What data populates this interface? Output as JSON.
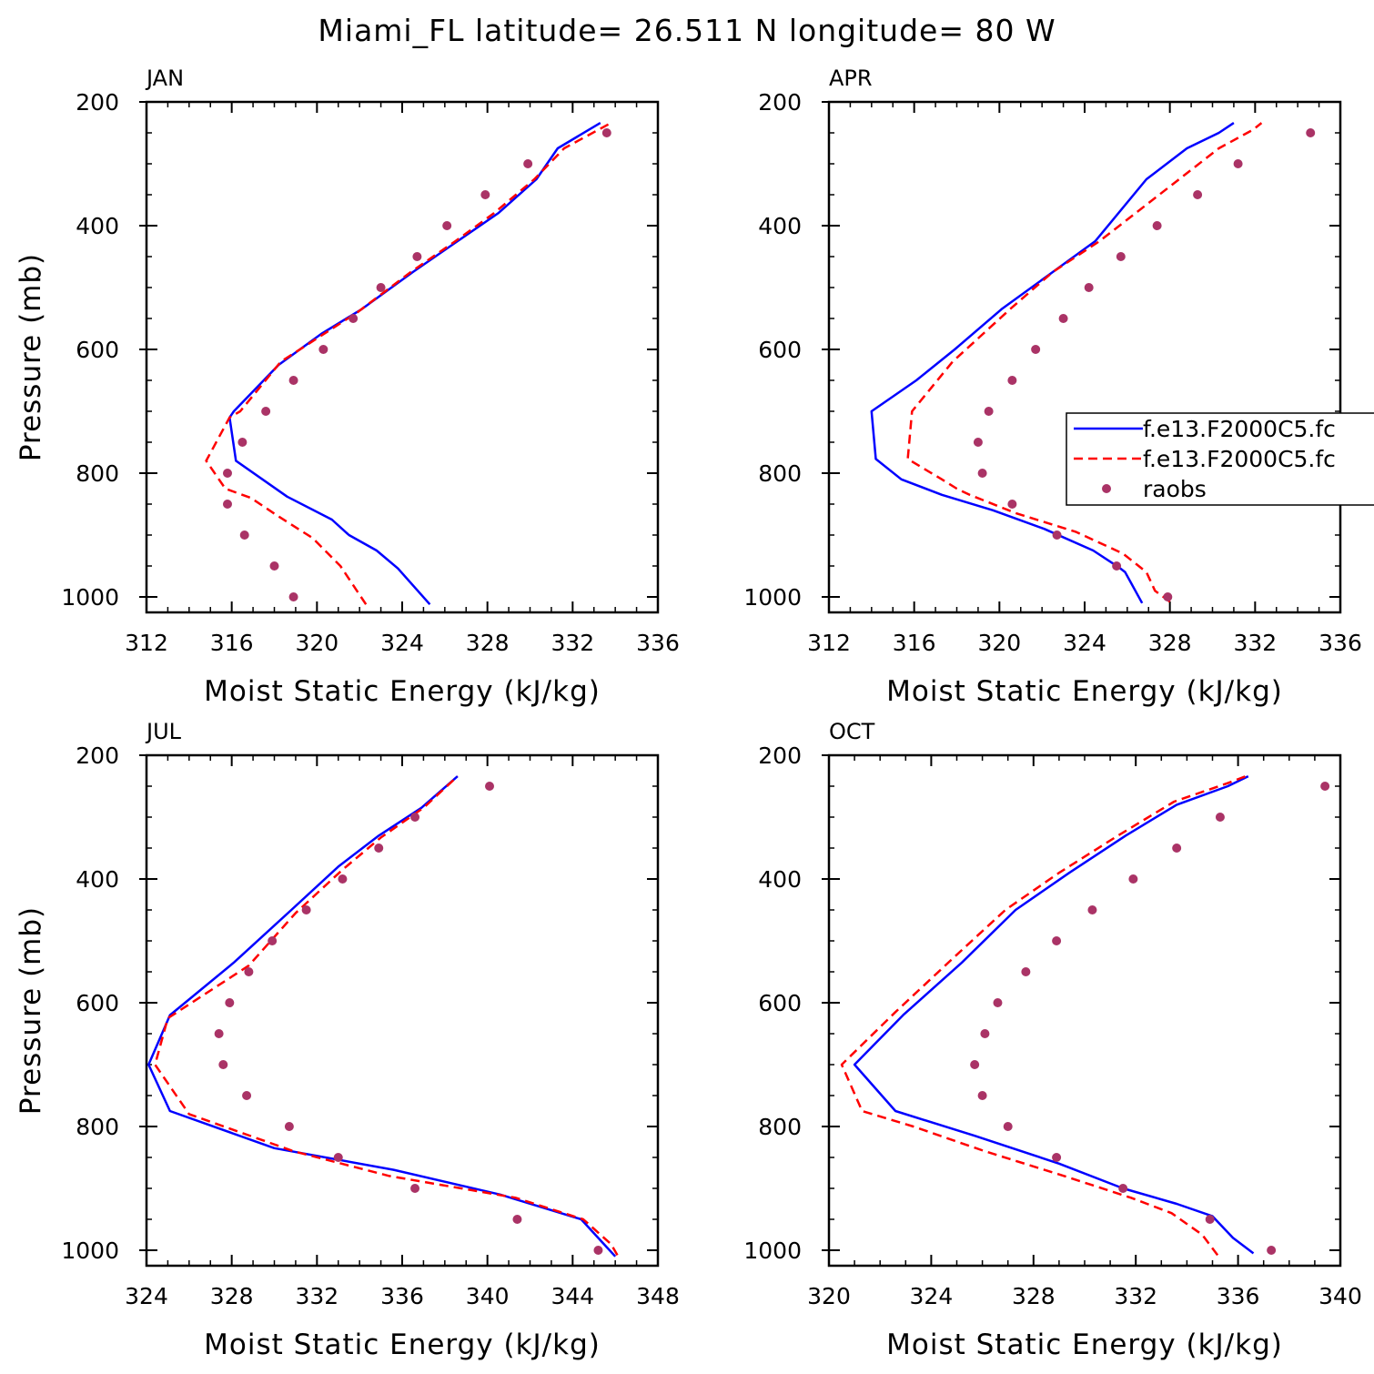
{
  "title": "Miami_FL  latitude= 26.511 N longitude= 80 W",
  "colors": {
    "series1": "#0000ff",
    "series2": "#ff0000",
    "raobs": "#aa3366"
  },
  "legend": {
    "placement": "right of APR panel (clipped)",
    "entries": [
      "f.e13.F2000C5.fc",
      "f.e13.F2000C5.fc",
      "raobs"
    ]
  },
  "chart_data": [
    {
      "type": "line",
      "title": "JAN",
      "xlabel": "Moist Static Energy (kJ/kg)",
      "ylabel": "Pressure (mb)",
      "xlim": [
        312,
        336
      ],
      "ylim": [
        1000,
        200
      ],
      "xticks": [
        312,
        316,
        320,
        324,
        328,
        332,
        336
      ],
      "yticks": [
        200,
        400,
        600,
        800,
        1000
      ],
      "series": [
        {
          "style": "solid-blue",
          "x": [
            325.3,
            323.8,
            322.8,
            321.5,
            320.7,
            318.6,
            316.2,
            315.9,
            316.1,
            318.2,
            320.2,
            322.1,
            324.5,
            326.6,
            328.5,
            330.3,
            331.3,
            333.3
          ],
          "y": [
            1012,
            954,
            925,
            900,
            875,
            838,
            780,
            710,
            700,
            625,
            575,
            535,
            475,
            425,
            380,
            325,
            275,
            234
          ]
        },
        {
          "style": "dashed-red",
          "x": [
            322.3,
            321.1,
            319.8,
            318.2,
            316.9,
            315.7,
            314.8,
            315.9,
            316.4,
            318.3,
            320.1,
            321.9,
            324.4,
            326.5,
            328.3,
            330.2,
            331.6,
            333.8
          ],
          "y": [
            1012,
            950,
            905,
            870,
            840,
            825,
            780,
            710,
            700,
            620,
            580,
            540,
            475,
            425,
            380,
            325,
            275,
            234
          ]
        },
        {
          "style": "dots",
          "name": "raobs",
          "x": [
            318.9,
            318.0,
            316.6,
            315.8,
            315.8,
            316.5,
            317.6,
            318.9,
            320.3,
            321.7,
            323.0,
            324.7,
            326.1,
            327.9,
            329.9,
            333.6
          ],
          "y": [
            1000,
            950,
            900,
            850,
            800,
            750,
            700,
            650,
            600,
            550,
            500,
            450,
            400,
            350,
            300,
            250
          ]
        }
      ]
    },
    {
      "type": "line",
      "title": "APR",
      "xlabel": "Moist Static Energy (kJ/kg)",
      "ylabel": "",
      "xlim": [
        312,
        336
      ],
      "ylim": [
        1000,
        200
      ],
      "xticks": [
        312,
        316,
        320,
        324,
        328,
        332,
        336
      ],
      "yticks": [
        200,
        400,
        600,
        800,
        1000
      ],
      "series": [
        {
          "style": "solid-blue",
          "x": [
            326.7,
            325.9,
            325.6,
            324.4,
            322.1,
            319.7,
            317.3,
            315.4,
            314.2,
            314.0,
            316.1,
            317.9,
            320.1,
            322.5,
            324.5,
            326.9,
            328.8,
            330.3,
            331.0
          ],
          "y": [
            1010,
            960,
            952,
            925,
            890,
            860,
            835,
            810,
            777,
            700,
            650,
            600,
            535,
            475,
            425,
            325,
            275,
            250,
            234
          ]
        },
        {
          "style": "dashed-red",
          "x": [
            328.0,
            327.3,
            326.9,
            325.8,
            323.6,
            320.8,
            318.6,
            318.0,
            317.3,
            315.7,
            315.9,
            317.8,
            320.5,
            322.5,
            324.7,
            327.5,
            330.3,
            331.9,
            332.3
          ],
          "y": [
            1008,
            990,
            960,
            930,
            895,
            865,
            835,
            825,
            810,
            777,
            700,
            620,
            535,
            475,
            425,
            350,
            275,
            245,
            234
          ]
        },
        {
          "style": "dots",
          "name": "raobs",
          "x": [
            327.9,
            325.5,
            322.7,
            320.6,
            319.2,
            319.0,
            319.5,
            320.6,
            321.7,
            323.0,
            324.2,
            325.7,
            327.4,
            329.3,
            331.2,
            334.6
          ],
          "y": [
            1000,
            950,
            900,
            850,
            800,
            750,
            700,
            650,
            600,
            550,
            500,
            450,
            400,
            350,
            300,
            250
          ]
        }
      ]
    },
    {
      "type": "line",
      "title": "JUL",
      "xlabel": "Moist Static Energy (kJ/kg)",
      "ylabel": "Pressure (mb)",
      "xlim": [
        324,
        348
      ],
      "ylim": [
        1000,
        200
      ],
      "xticks": [
        324,
        328,
        332,
        336,
        340,
        344,
        348
      ],
      "yticks": [
        200,
        400,
        600,
        800,
        1000
      ],
      "series": [
        {
          "style": "solid-blue",
          "x": [
            346.0,
            345.6,
            344.4,
            340.6,
            335.6,
            330.0,
            325.1,
            324.1,
            325.1,
            328.1,
            330.8,
            333.0,
            334.9,
            336.9,
            338.6
          ],
          "y": [
            1010,
            995,
            950,
            910,
            870,
            835,
            775,
            700,
            620,
            535,
            450,
            380,
            330,
            285,
            234
          ]
        },
        {
          "style": "dashed-red",
          "x": [
            346.1,
            345.8,
            344.5,
            341.3,
            335.4,
            330.9,
            326.0,
            324.4,
            325.0,
            328.8,
            331.0,
            333.2,
            335.0,
            337.0,
            338.6
          ],
          "y": [
            1008,
            990,
            950,
            915,
            880,
            840,
            780,
            700,
            625,
            540,
            455,
            385,
            333,
            285,
            234
          ]
        },
        {
          "style": "dots",
          "name": "raobs",
          "x": [
            345.2,
            341.4,
            336.6,
            333.0,
            330.7,
            328.7,
            327.6,
            327.4,
            327.9,
            328.8,
            329.9,
            331.5,
            333.2,
            334.9,
            336.6,
            340.1
          ],
          "y": [
            1000,
            950,
            900,
            850,
            800,
            750,
            700,
            650,
            600,
            550,
            500,
            450,
            400,
            350,
            300,
            250
          ]
        }
      ]
    },
    {
      "type": "line",
      "title": "OCT",
      "xlabel": "Moist Static Energy (kJ/kg)",
      "ylabel": "",
      "xlim": [
        320,
        340
      ],
      "ylim": [
        1000,
        200
      ],
      "xticks": [
        320,
        324,
        328,
        332,
        336,
        340
      ],
      "yticks": [
        200,
        400,
        600,
        800,
        1000
      ],
      "series": [
        {
          "style": "solid-blue",
          "x": [
            336.6,
            335.8,
            335.0,
            333.6,
            331.5,
            329.0,
            325.7,
            322.6,
            321.0,
            322.9,
            325.2,
            327.3,
            329.4,
            331.6,
            333.6,
            335.6,
            336.4
          ],
          "y": [
            1005,
            980,
            945,
            925,
            900,
            860,
            815,
            775,
            700,
            620,
            535,
            450,
            390,
            330,
            280,
            250,
            234
          ]
        },
        {
          "style": "dashed-red",
          "x": [
            335.2,
            334.6,
            333.4,
            331.8,
            329.2,
            326.1,
            323.3,
            321.3,
            320.5,
            322.6,
            324.8,
            326.9,
            329.0,
            331.3,
            333.5,
            335.6,
            336.3
          ],
          "y": [
            1008,
            975,
            940,
            915,
            880,
            840,
            800,
            775,
            700,
            615,
            530,
            450,
            390,
            330,
            275,
            245,
            234
          ]
        },
        {
          "style": "dots",
          "name": "raobs",
          "x": [
            337.3,
            334.9,
            331.5,
            328.9,
            327.0,
            326.0,
            325.7,
            326.1,
            326.6,
            327.7,
            328.9,
            330.3,
            331.9,
            333.6,
            335.3,
            339.4
          ],
          "y": [
            1000,
            950,
            900,
            850,
            800,
            750,
            700,
            650,
            600,
            550,
            500,
            450,
            400,
            350,
            300,
            250
          ]
        }
      ]
    }
  ]
}
